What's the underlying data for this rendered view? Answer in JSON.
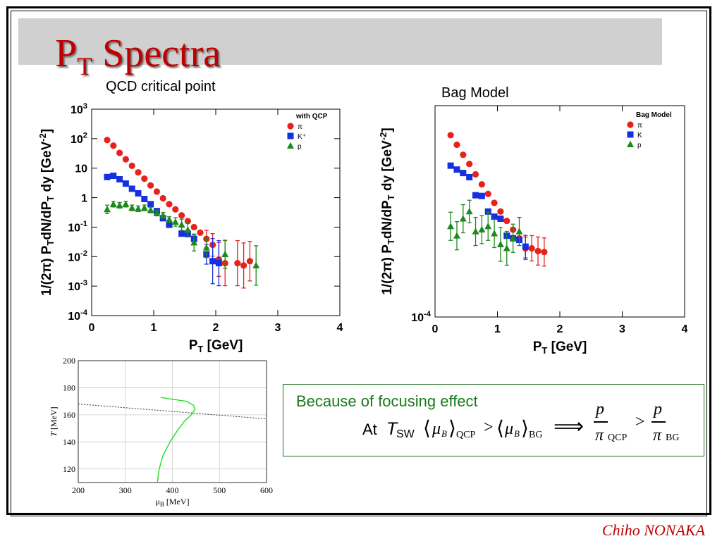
{
  "slide": {
    "title_main": "P",
    "title_sub": "T",
    "title_rest": " Spectra",
    "author": "Chiho NONAKA"
  },
  "left_chart_caption": "QCD critical point",
  "right_chart_caption": "Bag Model",
  "focus_box": {
    "heading": "Because of focusing effect",
    "at_label": "At",
    "T_symbol": "T",
    "T_sub": "SW",
    "mu_symbol": "μ",
    "mu_sub": "B",
    "qcp_sub": "QCP",
    "bg_sub": "BG",
    "gt": ">",
    "implies": "⟹",
    "p_symbol": "p",
    "pi_symbol": "π"
  },
  "colors": {
    "pi": "#e8211c",
    "K": "#1430e0",
    "p": "#1c8a1c",
    "title": "#c00000",
    "green_curve": "#22dd22"
  },
  "chart_data": [
    {
      "type": "scatter",
      "log_y": true,
      "ylim_exp": [
        -4,
        3
      ],
      "xlim": [
        0,
        4
      ],
      "xticks": [
        "0",
        "1",
        "2",
        "3",
        "4"
      ],
      "yticks": [
        "10^-4",
        "10^-3",
        "10^-2",
        "10^-1",
        "1",
        "10",
        "10^2",
        "10^3"
      ],
      "xlabel": "P_T [GeV]",
      "ylabel": "1/(2π) P_TdN/dP_T dy [GeV^-2]",
      "legend_title": "with QCP",
      "legend_position": "top-right",
      "series": [
        {
          "name": "π",
          "marker": "circle",
          "x": [
            0.25,
            0.35,
            0.45,
            0.55,
            0.65,
            0.75,
            0.85,
            0.95,
            1.05,
            1.15,
            1.25,
            1.35,
            1.45,
            1.55,
            1.65,
            1.75,
            1.85,
            1.95,
            2.05,
            2.15,
            2.35,
            2.45,
            2.55
          ],
          "y": [
            90,
            58,
            33,
            20,
            12,
            7.2,
            4.4,
            2.6,
            1.6,
            0.95,
            0.6,
            0.4,
            0.25,
            0.16,
            0.1,
            0.065,
            0.04,
            0.025,
            0.008,
            0.006,
            0.006,
            0.005,
            0.007
          ],
          "err": [
            0,
            0,
            0,
            0,
            0,
            0,
            0,
            0,
            0,
            0,
            0,
            0,
            0,
            0,
            0,
            0,
            0.3,
            0.4,
            0.6,
            0.8,
            0.8,
            0.8,
            0.7
          ]
        },
        {
          "name": "K⁺",
          "marker": "square",
          "x": [
            0.25,
            0.35,
            0.45,
            0.55,
            0.65,
            0.75,
            0.85,
            0.95,
            1.05,
            1.15,
            1.25,
            1.45,
            1.55,
            1.65,
            1.85,
            1.95,
            2.05
          ],
          "y": [
            5,
            5.5,
            4.2,
            3,
            2,
            1.4,
            0.9,
            0.6,
            0.35,
            0.2,
            0.12,
            0.06,
            0.06,
            0.04,
            0.012,
            0.007,
            0.006
          ],
          "err": [
            0,
            0,
            0,
            0,
            0,
            0,
            0,
            0,
            0,
            0,
            0,
            0,
            0.1,
            0.15,
            0.35,
            0.8,
            0.8
          ]
        },
        {
          "name": "p",
          "marker": "triangle",
          "x": [
            0.25,
            0.35,
            0.45,
            0.55,
            0.65,
            0.75,
            0.85,
            0.95,
            1.05,
            1.15,
            1.25,
            1.35,
            1.45,
            1.55,
            1.65,
            1.85,
            2.15,
            2.65
          ],
          "y": [
            0.4,
            0.6,
            0.55,
            0.6,
            0.45,
            0.42,
            0.45,
            0.38,
            0.3,
            0.25,
            0.18,
            0.15,
            0.12,
            0.08,
            0.03,
            0.02,
            0.012,
            0.005
          ],
          "err": [
            0.15,
            0.1,
            0.1,
            0.1,
            0.1,
            0.1,
            0.1,
            0.1,
            0.1,
            0.1,
            0.1,
            0.15,
            0.2,
            0.25,
            0.3,
            0.35,
            0.5,
            0.7
          ]
        }
      ]
    },
    {
      "type": "scatter",
      "log_y": true,
      "xlim": [
        0,
        4
      ],
      "xticks": [
        "0",
        "1",
        "2",
        "3",
        "4"
      ],
      "yticks": [
        "10^-4"
      ],
      "xlabel": "P_T [GeV]",
      "ylabel": "1/(2π) P_TdN/dP_T dy [GeV^-2]",
      "legend_title": "Bag Model",
      "legend_position": "top-right",
      "series": [
        {
          "name": "π",
          "marker": "circle",
          "x": [
            0.25,
            0.35,
            0.45,
            0.55,
            0.65,
            0.75,
            0.85,
            0.95,
            1.05,
            1.15,
            1.25,
            1.35,
            1.45,
            1.55,
            1.65,
            1.75
          ],
          "y": [
            5000,
            3200,
            2000,
            1300,
            800,
            500,
            320,
            210,
            140,
            90,
            60,
            40,
            25,
            25,
            22,
            21
          ],
          "err": [
            0,
            0,
            0,
            0,
            0,
            0,
            0,
            0,
            0,
            0,
            0,
            0,
            0.4,
            0.45,
            0.5,
            0.5
          ]
        },
        {
          "name": "K",
          "marker": "square",
          "x": [
            0.25,
            0.35,
            0.45,
            0.55,
            0.65,
            0.75,
            0.85,
            0.95,
            1.05,
            1.15,
            1.25,
            1.35,
            1.45
          ],
          "y": [
            1200,
            1000,
            850,
            700,
            300,
            290,
            140,
            110,
            100,
            45,
            40,
            37,
            27
          ],
          "err": [
            0,
            0,
            0,
            0,
            0,
            0,
            0,
            0,
            0,
            0,
            0,
            0,
            0.4
          ]
        },
        {
          "name": "p",
          "marker": "triangle",
          "x": [
            0.25,
            0.35,
            0.45,
            0.55,
            0.65,
            0.75,
            0.85,
            0.95,
            1.05,
            1.15,
            1.25,
            1.35
          ],
          "y": [
            70,
            45,
            100,
            140,
            55,
            60,
            70,
            50,
            30,
            25,
            40,
            55
          ],
          "err": [
            0.5,
            0.5,
            0.5,
            0.4,
            0.5,
            0.5,
            0.5,
            0.5,
            0.6,
            0.6,
            0.5,
            0.5
          ]
        }
      ]
    },
    {
      "type": "line",
      "xlim": [
        200,
        600
      ],
      "ylim": [
        110,
        200
      ],
      "xticks": [
        "200",
        "300",
        "400",
        "500",
        "600"
      ],
      "yticks": [
        "120",
        "140",
        "160",
        "180",
        "200"
      ],
      "xlabel": "μB [MeV]",
      "ylabel": "T [MeV]",
      "series": [
        {
          "style": "dashed",
          "x": [
            200,
            600
          ],
          "y": [
            168,
            157
          ]
        },
        {
          "style": "solid-green",
          "x": [
            368,
            372,
            380,
            395,
            410,
            425,
            440,
            448,
            445,
            430,
            410,
            390,
            375
          ],
          "y": [
            110,
            120,
            130,
            140,
            148,
            155,
            160,
            164,
            167,
            170,
            171,
            172,
            173
          ]
        }
      ]
    }
  ]
}
